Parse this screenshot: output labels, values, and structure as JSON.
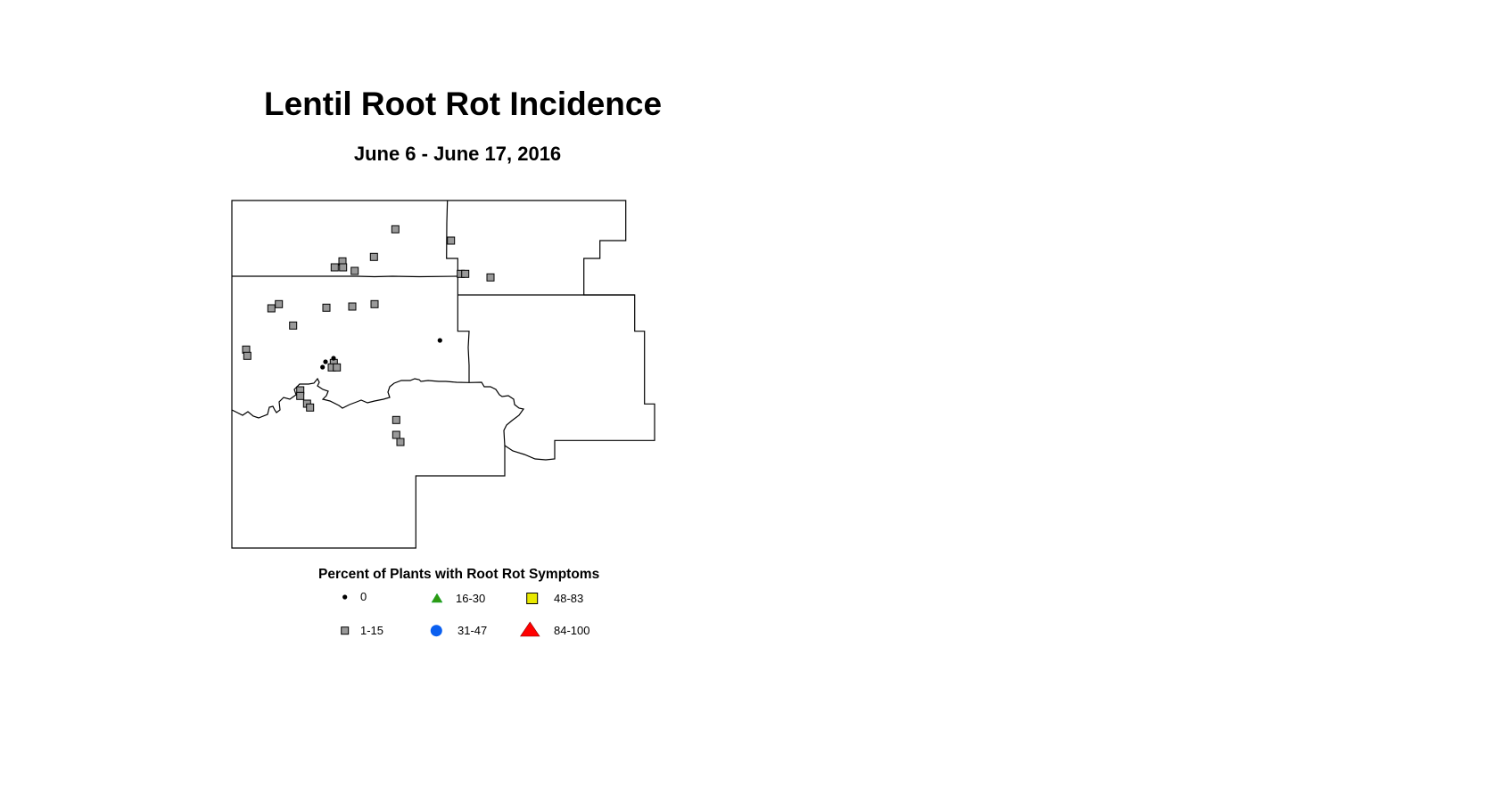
{
  "title": "Lentil Root Rot Incidence",
  "subtitle": "June 6 - June 17, 2016",
  "legend": {
    "title": "Percent of Plants with Root Rot Symptoms",
    "classes": [
      {
        "label": "0",
        "symbol": "dot",
        "color": "#000000"
      },
      {
        "label": "1-15",
        "symbol": "square",
        "color": "#999999"
      },
      {
        "label": "16-30",
        "symbol": "triangle",
        "color": "#2e9a10"
      },
      {
        "label": "31-47",
        "symbol": "circle",
        "color": "#0a5ff0"
      },
      {
        "label": "48-83",
        "symbol": "square",
        "color": "#e8e800"
      },
      {
        "label": "84-100",
        "symbol": "triangle",
        "color": "#ff0000"
      }
    ]
  },
  "sites": {
    "class_0_count": 4,
    "class_1_15_count": 28
  }
}
